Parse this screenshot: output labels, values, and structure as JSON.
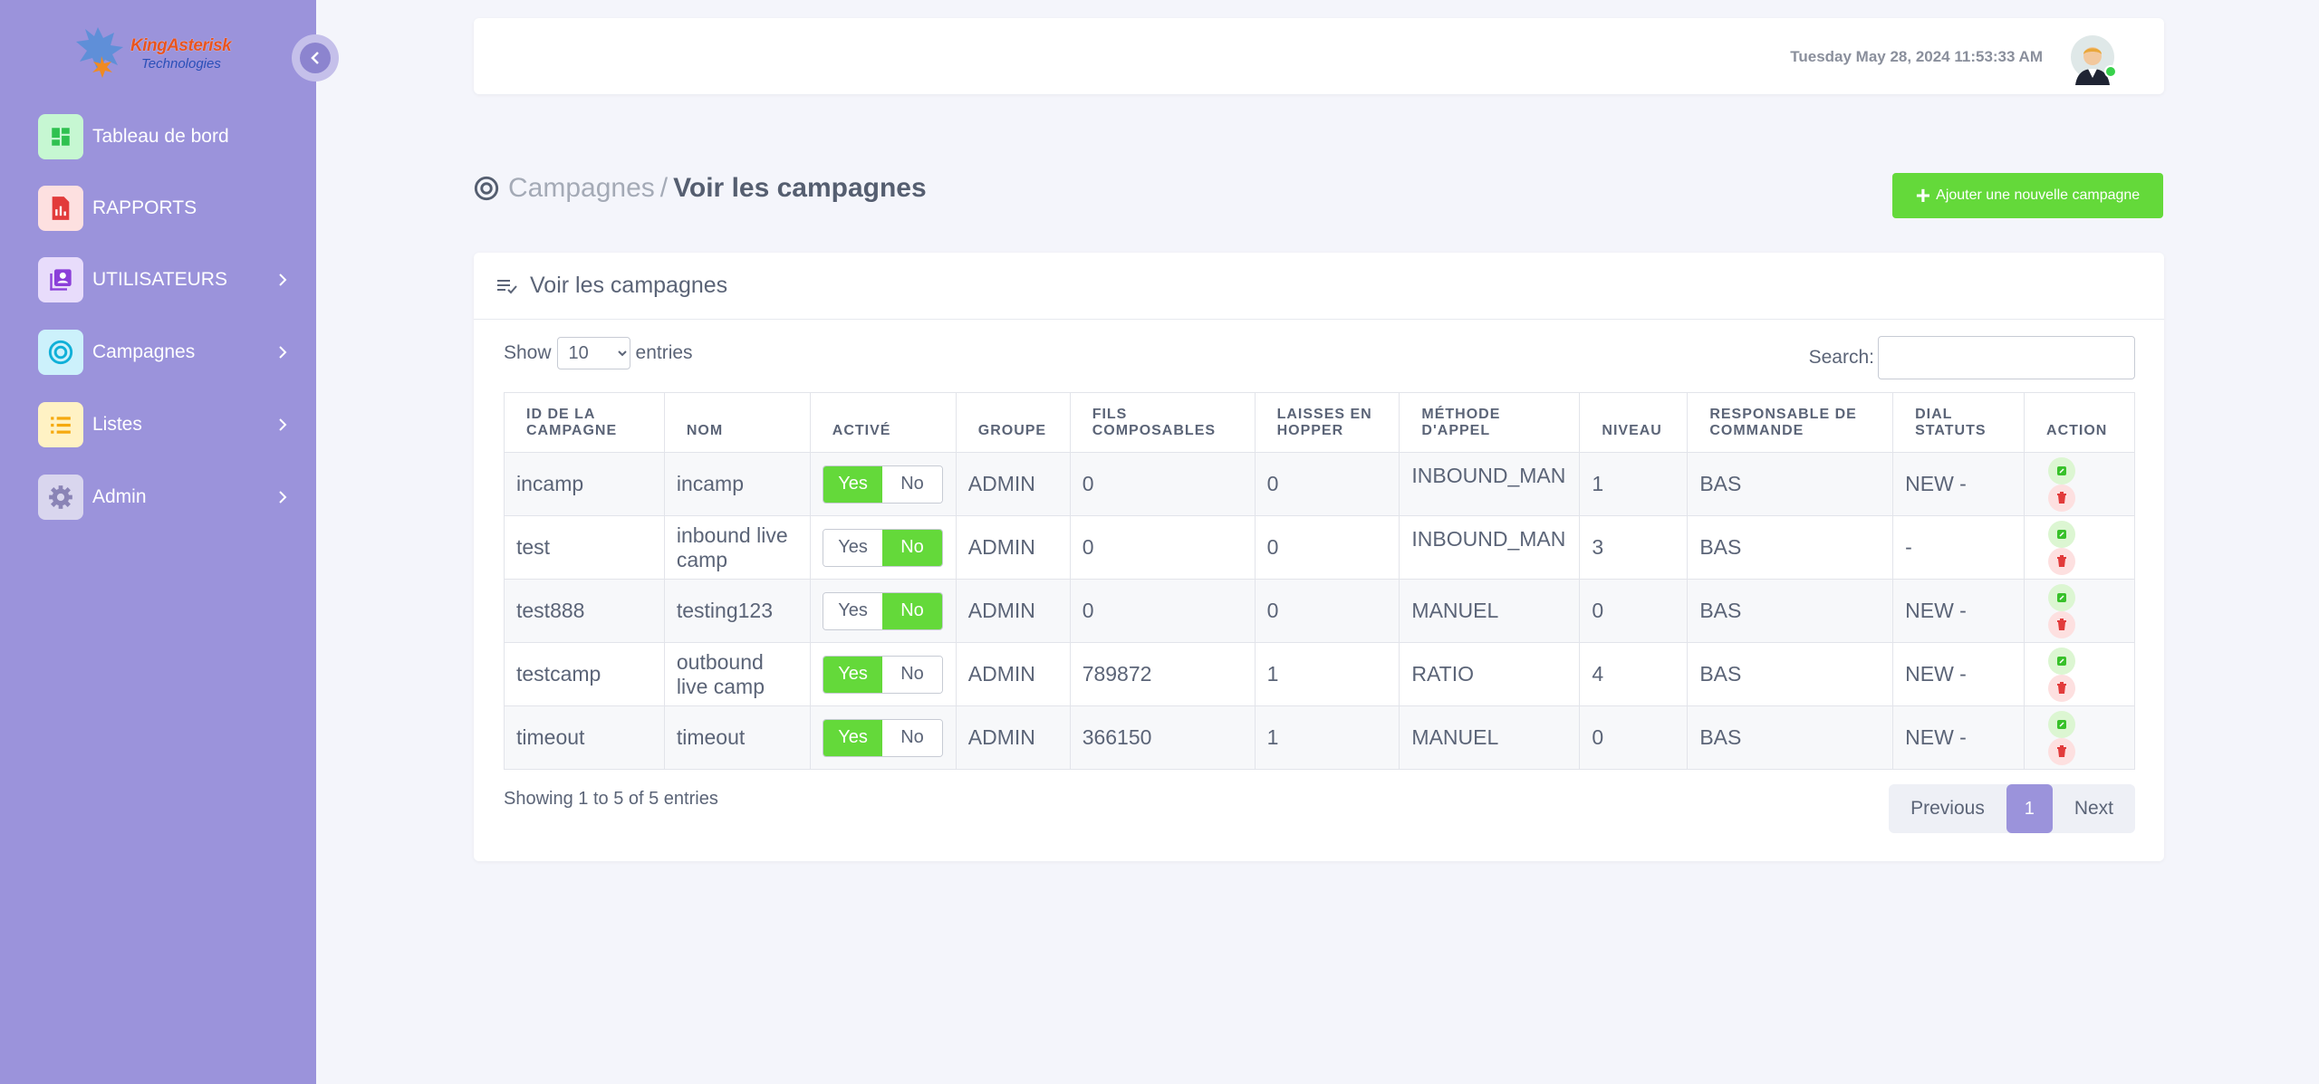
{
  "brand": {
    "name": "KingAsterisk",
    "sub": "Technologies"
  },
  "sidebar": {
    "items": [
      {
        "label": "Tableau de bord",
        "icon": "dashboard-icon",
        "icon_bg": "#c6f7d2",
        "icon_color": "#2fc150"
      },
      {
        "label": "RAPPORTS",
        "icon": "report-icon",
        "icon_bg": "#fde0e0",
        "icon_color": "#e23b3b"
      },
      {
        "label": "UTILISATEURS",
        "icon": "users-icon",
        "icon_bg": "#e8dcfb",
        "icon_color": "#8b3fd9"
      },
      {
        "label": "Campagnes",
        "icon": "target-icon",
        "icon_bg": "#ccf1fb",
        "icon_color": "#0fb0d8"
      },
      {
        "label": "Listes",
        "icon": "list-icon",
        "icon_bg": "#fff2c4",
        "icon_color": "#f5a90f"
      },
      {
        "label": "Admin",
        "icon": "gear-icon",
        "icon_bg": "#d9d6ee",
        "icon_color": "#8a84b6"
      }
    ]
  },
  "header": {
    "datetime": "Tuesday May 28, 2024 11:53:33 AM"
  },
  "breadcrumb": {
    "parent": "Campagnes",
    "separator": "/",
    "current": "Voir les campagnes"
  },
  "add_button": {
    "label": "Ajouter une nouvelle campagne"
  },
  "card": {
    "title": "Voir les campagnes",
    "show_label": "Show",
    "entries_label": "entries",
    "page_size": "10",
    "search_label": "Search:",
    "search_value": ""
  },
  "table": {
    "columns": [
      "ID DE LA CAMPAGNE",
      "NOM",
      "ACTIVÉ",
      "GROUPE",
      "FILS COMPOSABLES",
      "LAISSES EN HOPPER",
      "MÉTHODE D'APPEL",
      "NIVEAU",
      "RESPONSABLE DE COMMANDE",
      "DIAL STATUTS",
      "ACTION"
    ],
    "toggle_yes": "Yes",
    "toggle_no": "No",
    "rows": [
      {
        "id": "incamp",
        "nom": "incamp",
        "active": true,
        "groupe": "ADMIN",
        "fils": "0",
        "hopper": "0",
        "methode": "INBOUND_MAN",
        "niveau": "1",
        "responsable": "BAS",
        "statuts": "NEW -"
      },
      {
        "id": "test",
        "nom": "inbound live camp",
        "active": false,
        "groupe": "ADMIN",
        "fils": "0",
        "hopper": "0",
        "methode": "INBOUND_MAN",
        "niveau": "3",
        "responsable": "BAS",
        "statuts": "-"
      },
      {
        "id": "test888",
        "nom": "testing123",
        "active": false,
        "groupe": "ADMIN",
        "fils": "0",
        "hopper": "0",
        "methode": "MANUEL",
        "niveau": "0",
        "responsable": "BAS",
        "statuts": "NEW -"
      },
      {
        "id": "testcamp",
        "nom": "outbound live camp",
        "active": true,
        "groupe": "ADMIN",
        "fils": "789872",
        "hopper": "1",
        "methode": "RATIO",
        "niveau": "4",
        "responsable": "BAS",
        "statuts": "NEW -"
      },
      {
        "id": "timeout",
        "nom": "timeout",
        "active": true,
        "groupe": "ADMIN",
        "fils": "366150",
        "hopper": "1",
        "methode": "MANUEL",
        "niveau": "0",
        "responsable": "BAS",
        "statuts": "NEW -"
      }
    ]
  },
  "footer": {
    "info": "Showing 1 to 5 of 5 entries",
    "previous": "Previous",
    "current_page": "1",
    "next": "Next"
  },
  "colors": {
    "sidebar": "#9b93db",
    "accent_green": "#64d93a",
    "danger": "#e23b3b"
  }
}
